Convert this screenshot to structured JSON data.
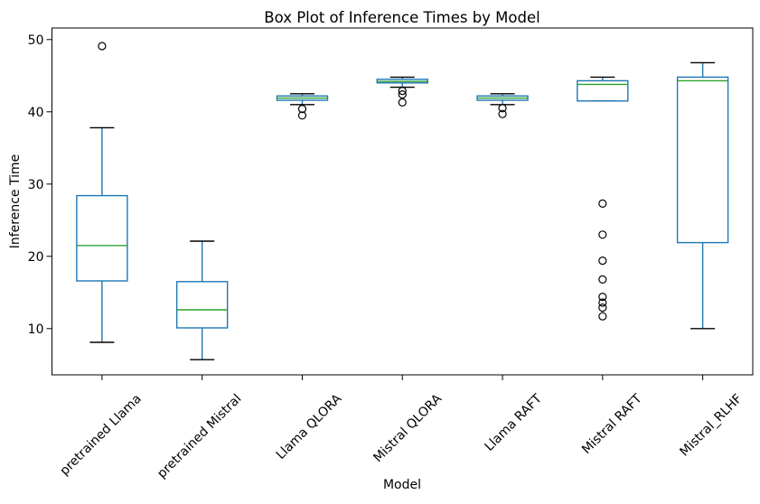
{
  "chart_data": {
    "type": "boxplot",
    "title": "Box Plot of Inference Times by Model",
    "xlabel": "Model",
    "ylabel": "Inference Time",
    "categories": [
      "pretrained Llama",
      "pretrained Mistral",
      "Llama QLORA",
      "Mistral QLORA",
      "Llama RAFT",
      "Mistral RAFT",
      "Mistral_RLHF"
    ],
    "yticks": [
      10,
      20,
      30,
      40,
      50
    ],
    "ylim": [
      3.6,
      51.6
    ],
    "grid": false,
    "legend": "none",
    "x_tick_rotation": 45,
    "colors": {
      "box_edge": "#1f77b4",
      "whisker": "#1f77b4",
      "cap": "#000000",
      "median": "#2ca02c",
      "flier_edge": "#000000",
      "spine": "#000000",
      "text": "#000000",
      "background": "#ffffff"
    },
    "series": [
      {
        "name": "pretrained Llama",
        "whislo": 8.1,
        "q1": 16.6,
        "med": 21.5,
        "q3": 28.4,
        "whishi": 37.8,
        "fliers": [
          49.1
        ]
      },
      {
        "name": "pretrained Mistral",
        "whislo": 5.7,
        "q1": 10.1,
        "med": 12.6,
        "q3": 16.5,
        "whishi": 22.1,
        "fliers": []
      },
      {
        "name": "Llama QLORA",
        "whislo": 41.0,
        "q1": 41.6,
        "med": 41.9,
        "q3": 42.2,
        "whishi": 42.5,
        "fliers": [
          40.4,
          39.5
        ]
      },
      {
        "name": "Mistral QLORA",
        "whislo": 43.4,
        "q1": 44.0,
        "med": 44.2,
        "q3": 44.5,
        "whishi": 44.8,
        "fliers": [
          42.9,
          42.4,
          41.3
        ]
      },
      {
        "name": "Llama RAFT",
        "whislo": 41.0,
        "q1": 41.6,
        "med": 41.9,
        "q3": 42.2,
        "whishi": 42.5,
        "fliers": [
          40.5,
          39.7
        ]
      },
      {
        "name": "Mistral RAFT",
        "whislo": 41.5,
        "q1": 41.5,
        "med": 43.8,
        "q3": 44.3,
        "whishi": 44.8,
        "fliers": [
          27.3,
          23.0,
          19.4,
          16.8,
          14.4,
          13.6,
          12.9,
          11.7
        ]
      },
      {
        "name": "Mistral_RLHF",
        "whislo": 10.0,
        "q1": 21.9,
        "med": 44.3,
        "q3": 44.8,
        "whishi": 46.8,
        "fliers": []
      }
    ]
  }
}
